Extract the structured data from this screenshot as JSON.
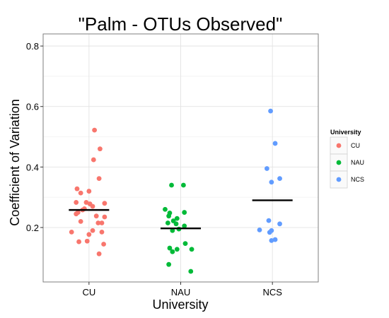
{
  "chart_data": {
    "type": "scatter",
    "title": "\"Palm - OTUs Observed\"",
    "xlabel": "University",
    "ylabel": "Coefficient of Variation",
    "categories": [
      "CU",
      "NAU",
      "NCS"
    ],
    "ylim": [
      0.02,
      0.84
    ],
    "yticks": [
      0.2,
      0.4,
      0.6,
      0.8
    ],
    "ytick_labels": [
      "0.2",
      "0.4",
      "0.6",
      "0.8"
    ],
    "grid": true,
    "legend": {
      "title": "University",
      "position": "right"
    },
    "series": [
      {
        "name": "CU",
        "color": "#F8766D",
        "mean": 0.258,
        "points": [
          {
            "x": 1.06,
            "y": 0.522
          },
          {
            "x": 1.12,
            "y": 0.46
          },
          {
            "x": 1.05,
            "y": 0.424
          },
          {
            "x": 1.11,
            "y": 0.362
          },
          {
            "x": 0.87,
            "y": 0.328
          },
          {
            "x": 1.0,
            "y": 0.32
          },
          {
            "x": 0.91,
            "y": 0.314
          },
          {
            "x": 0.97,
            "y": 0.283
          },
          {
            "x": 1.01,
            "y": 0.278
          },
          {
            "x": 0.86,
            "y": 0.283
          },
          {
            "x": 1.17,
            "y": 0.28
          },
          {
            "x": 1.04,
            "y": 0.27
          },
          {
            "x": 0.95,
            "y": 0.262
          },
          {
            "x": 0.93,
            "y": 0.258
          },
          {
            "x": 0.88,
            "y": 0.25
          },
          {
            "x": 0.86,
            "y": 0.245
          },
          {
            "x": 1.08,
            "y": 0.238
          },
          {
            "x": 1.17,
            "y": 0.235
          },
          {
            "x": 0.91,
            "y": 0.22
          },
          {
            "x": 1.1,
            "y": 0.215
          },
          {
            "x": 1.14,
            "y": 0.215
          },
          {
            "x": 1.04,
            "y": 0.19
          },
          {
            "x": 0.81,
            "y": 0.185
          },
          {
            "x": 1.14,
            "y": 0.185
          },
          {
            "x": 1.0,
            "y": 0.177
          },
          {
            "x": 0.89,
            "y": 0.153
          },
          {
            "x": 0.98,
            "y": 0.155
          },
          {
            "x": 1.16,
            "y": 0.145
          },
          {
            "x": 1.11,
            "y": 0.113
          }
        ]
      },
      {
        "name": "NAU",
        "color": "#00BA38",
        "mean": 0.197,
        "points": [
          {
            "x": 1.9,
            "y": 0.34
          },
          {
            "x": 2.03,
            "y": 0.34
          },
          {
            "x": 1.83,
            "y": 0.26
          },
          {
            "x": 2.04,
            "y": 0.25
          },
          {
            "x": 1.88,
            "y": 0.248
          },
          {
            "x": 1.87,
            "y": 0.238
          },
          {
            "x": 1.96,
            "y": 0.23
          },
          {
            "x": 1.92,
            "y": 0.222
          },
          {
            "x": 1.86,
            "y": 0.215
          },
          {
            "x": 1.95,
            "y": 0.212
          },
          {
            "x": 2.04,
            "y": 0.205
          },
          {
            "x": 1.98,
            "y": 0.195
          },
          {
            "x": 1.91,
            "y": 0.19
          },
          {
            "x": 2.05,
            "y": 0.147
          },
          {
            "x": 1.88,
            "y": 0.132
          },
          {
            "x": 1.96,
            "y": 0.128
          },
          {
            "x": 2.12,
            "y": 0.128
          },
          {
            "x": 1.91,
            "y": 0.12
          },
          {
            "x": 1.87,
            "y": 0.078
          },
          {
            "x": 2.11,
            "y": 0.055
          }
        ]
      },
      {
        "name": "NCS",
        "color": "#619CFF",
        "mean": 0.29,
        "points": [
          {
            "x": 2.98,
            "y": 0.585
          },
          {
            "x": 3.03,
            "y": 0.478
          },
          {
            "x": 2.94,
            "y": 0.395
          },
          {
            "x": 3.08,
            "y": 0.362
          },
          {
            "x": 2.99,
            "y": 0.35
          },
          {
            "x": 2.96,
            "y": 0.223
          },
          {
            "x": 3.08,
            "y": 0.212
          },
          {
            "x": 2.86,
            "y": 0.192
          },
          {
            "x": 2.99,
            "y": 0.19
          },
          {
            "x": 2.97,
            "y": 0.184
          },
          {
            "x": 3.03,
            "y": 0.16
          },
          {
            "x": 2.99,
            "y": 0.157
          }
        ]
      }
    ]
  }
}
